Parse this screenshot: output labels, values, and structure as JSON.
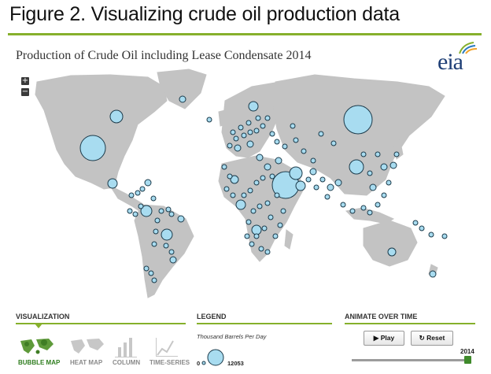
{
  "figure_title": "Figure 2. Visualizing crude oil production data",
  "map_title": "Production of Crude Oil including Lease Condensate 2014",
  "logo_text": "eia",
  "zoom": {
    "in_label": "+",
    "out_label": "−"
  },
  "visualization": {
    "heading": "VISUALIZATION",
    "tools": [
      {
        "label": "BUBBLE MAP",
        "icon": "bubble-map-icon",
        "active": true
      },
      {
        "label": "HEAT MAP",
        "icon": "heat-map-icon",
        "active": false
      },
      {
        "label": "COLUMN",
        "icon": "column-chart-icon",
        "active": false
      },
      {
        "label": "TIME-SERIES",
        "icon": "time-series-icon",
        "active": false
      }
    ]
  },
  "legend": {
    "heading": "LEGEND",
    "caption": "Thousand Barrels Per Day",
    "min_value": "0",
    "max_value": "12053"
  },
  "animate": {
    "heading": "ANIMATE OVER TIME",
    "play_label": "Play",
    "reset_label": "Reset",
    "year": "2014",
    "slider_position": 1.0
  },
  "colors": {
    "bubble_fill": "#a8dcf0",
    "bubble_stroke": "#1b3a4a",
    "land": "#c3c3c3",
    "accent_rule": "#86b02c",
    "logo_blue": "#1f3f76",
    "logo_green": "#86b02c"
  }
}
